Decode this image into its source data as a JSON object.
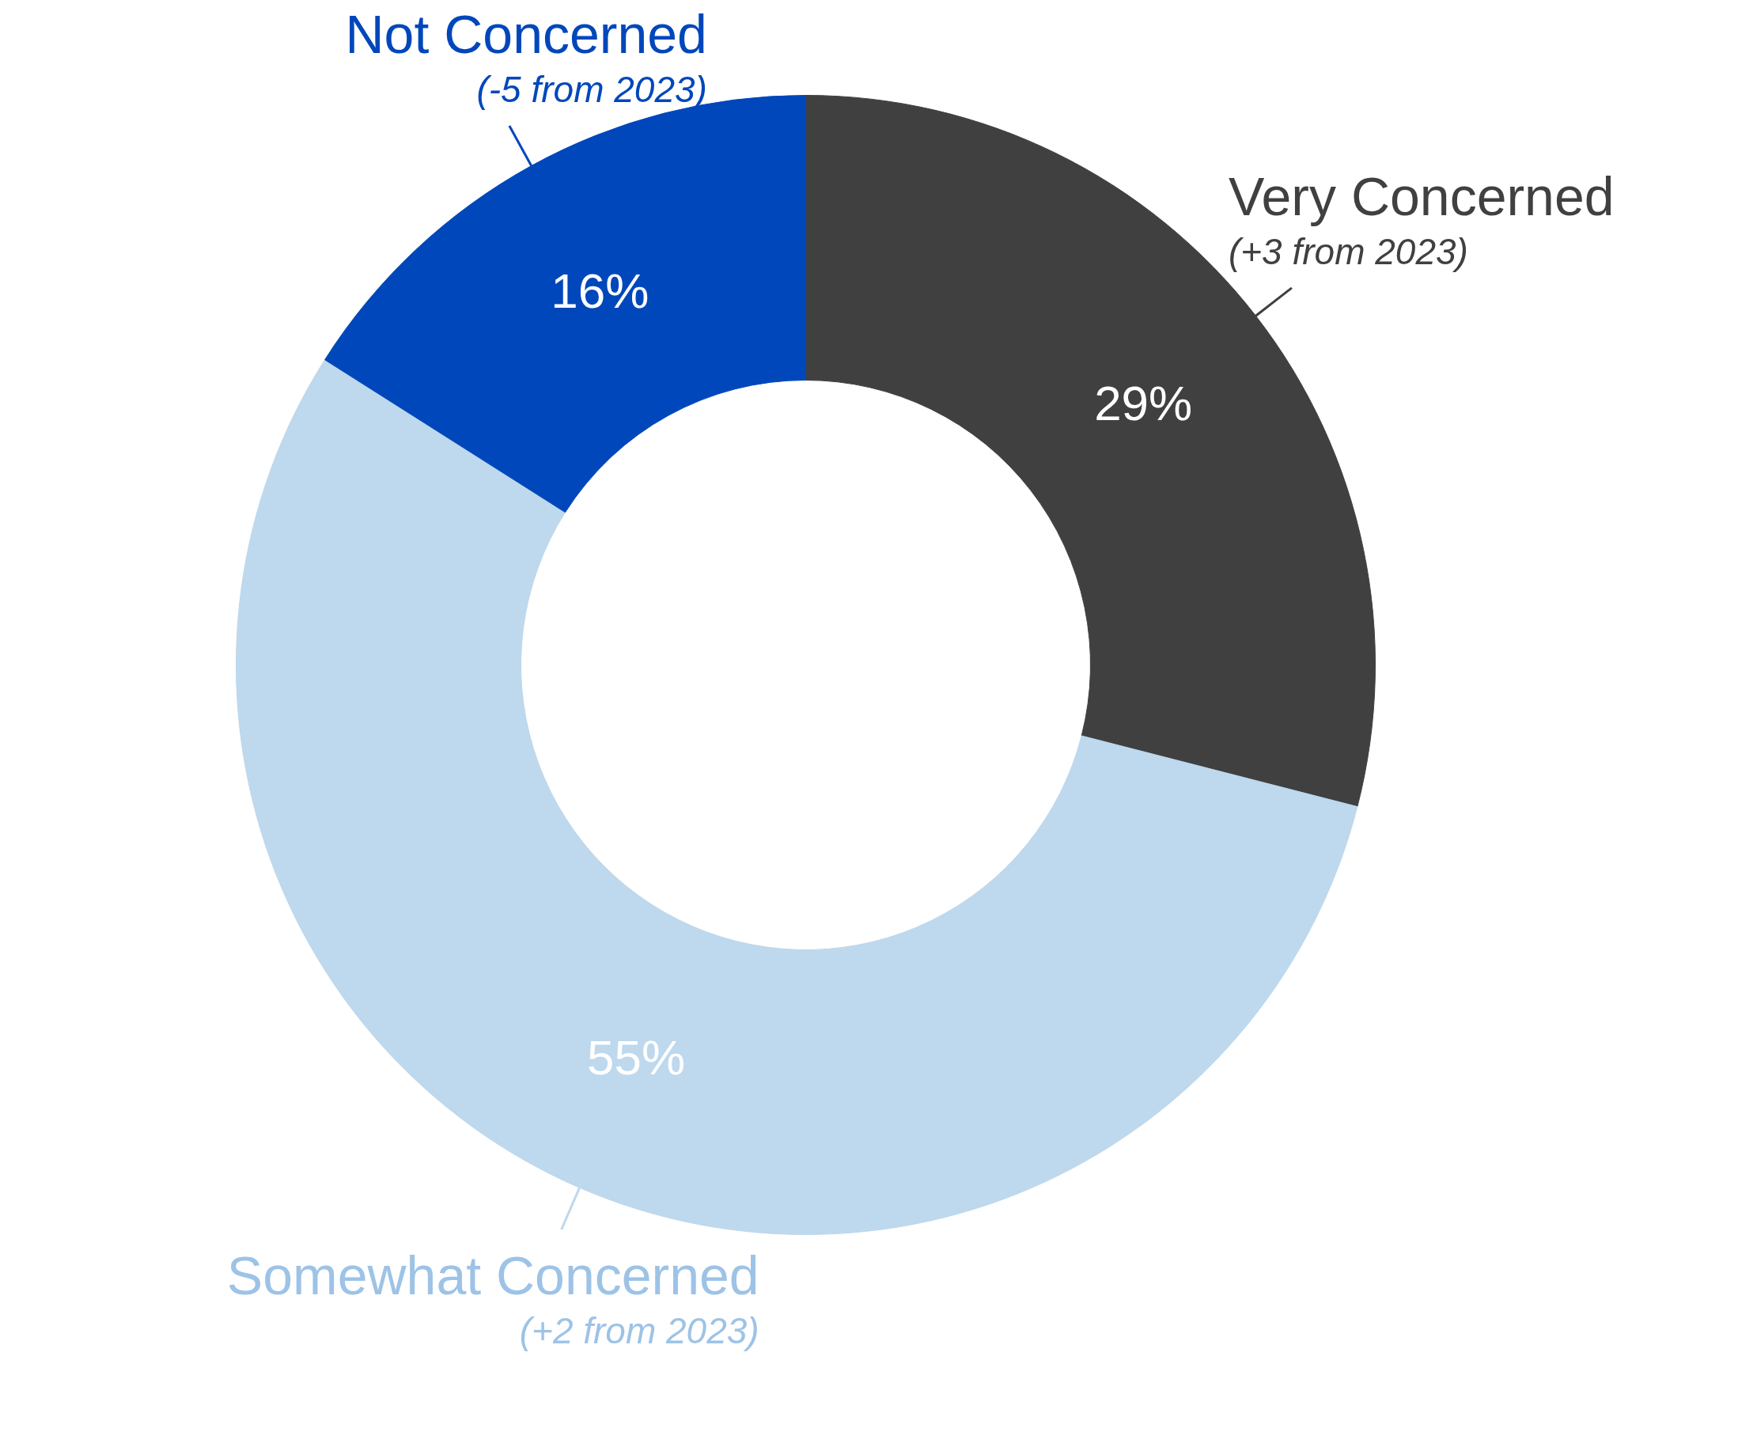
{
  "chart_data": {
    "type": "donut",
    "categories": [
      "Very Concerned",
      "Somewhat Concerned",
      "Not Concerned"
    ],
    "values": [
      29,
      55,
      16
    ],
    "colors": [
      "#404040",
      "#bed8ed",
      "#0047bb"
    ],
    "value_labels": [
      "29%",
      "55%",
      "16%"
    ],
    "annotations": [
      "(+3 from 2023)",
      "(+2 from 2023)",
      "(-5 from 2023)"
    ]
  }
}
